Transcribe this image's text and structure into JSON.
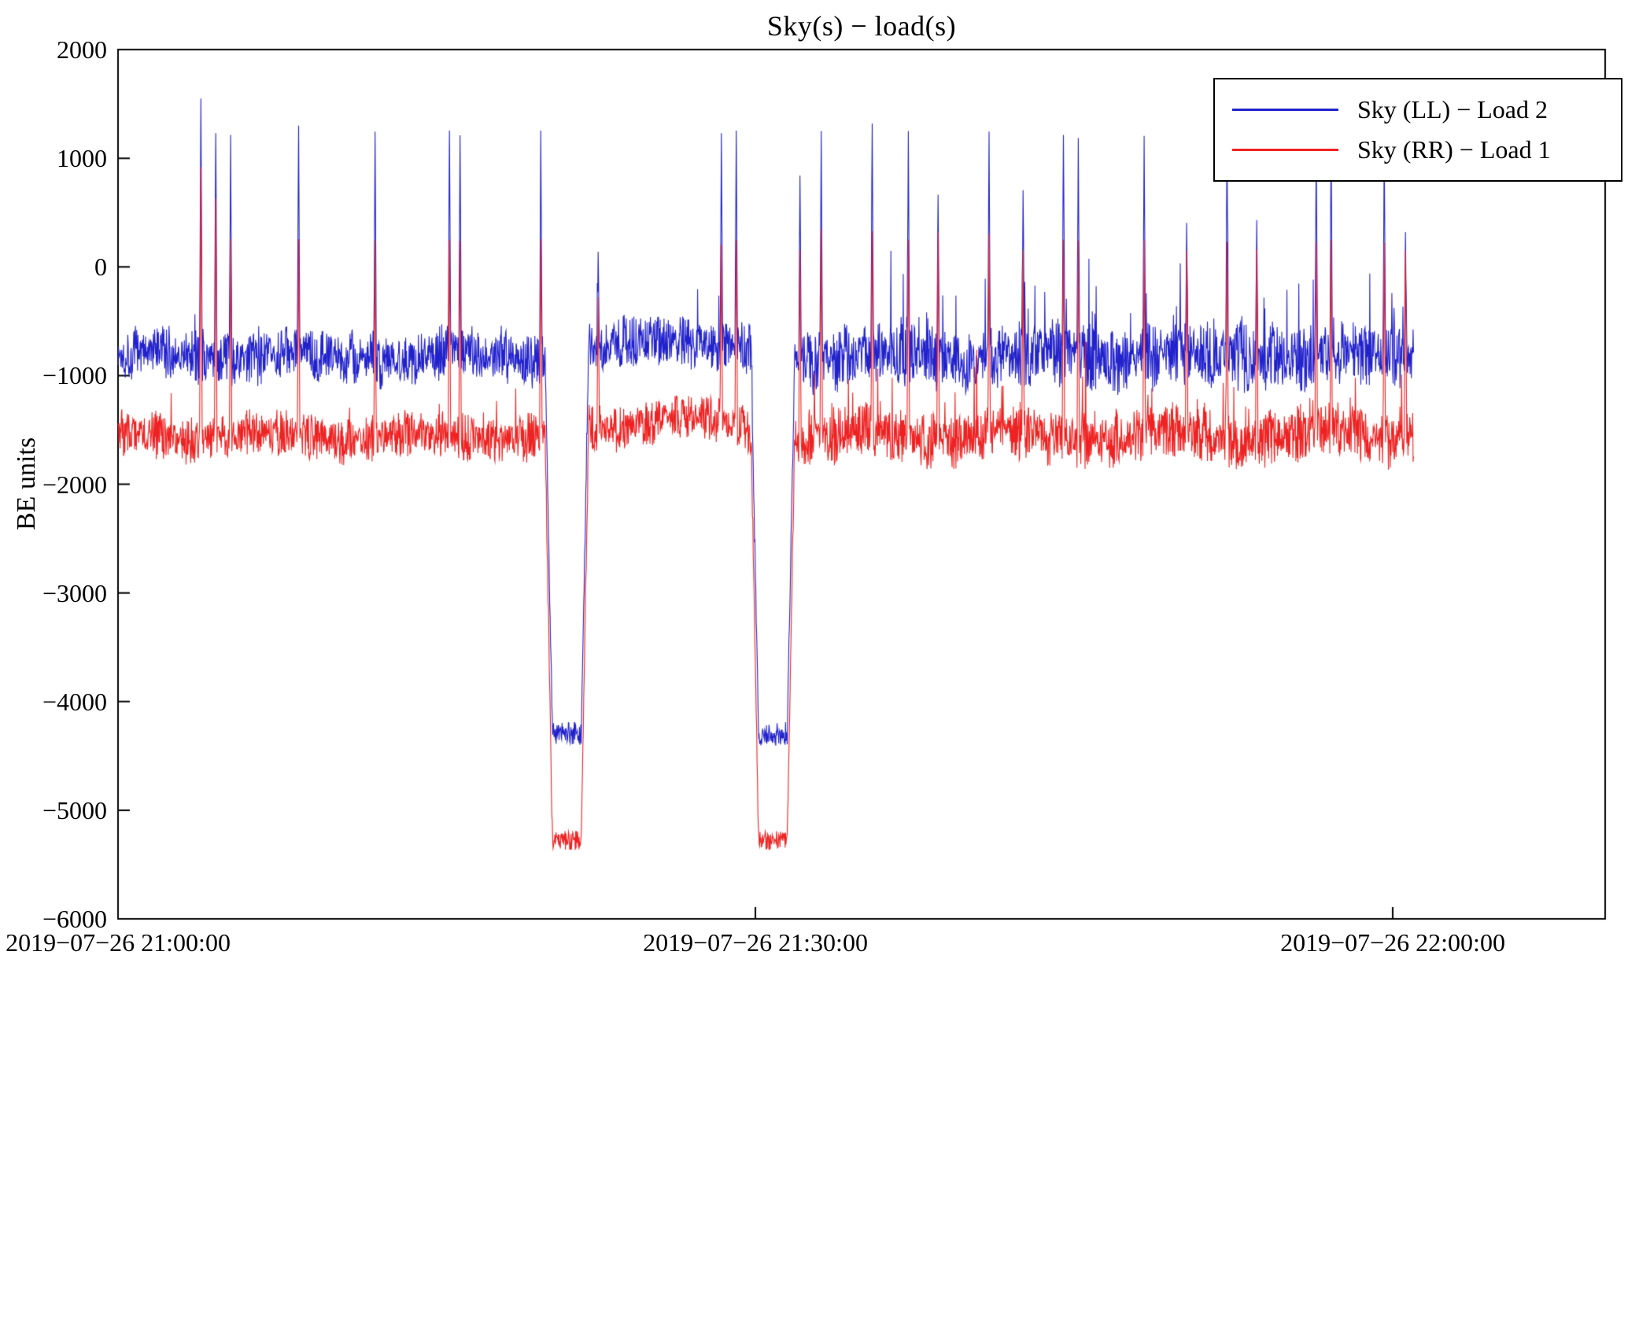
{
  "chart_data": {
    "type": "line",
    "title": "Sky(s) − load(s)",
    "ylabel": "BE units",
    "xlabel": "",
    "ylim": [
      -6000,
      2000
    ],
    "xlim_minutes": [
      0,
      70
    ],
    "grid": false,
    "legend_position": "upper right",
    "yticks": [
      2000,
      1000,
      0,
      -1000,
      -2000,
      -3000,
      -4000,
      -5000,
      -6000
    ],
    "ytick_labels": [
      "2000",
      "1000",
      "0",
      "−1000",
      "−2000",
      "−3000",
      "−4000",
      "−5000",
      "−6000"
    ],
    "xticks_minutes": [
      0,
      30,
      60
    ],
    "xtick_labels": [
      "2019−07−26 21:00:00",
      "2019−07−26 21:30:00",
      "2019−07−26 22:00:00"
    ],
    "legend": [
      {
        "label": "Sky (LL) − Load 2",
        "color": "#2222cc"
      },
      {
        "label": "Sky (RR) − Load 1",
        "color": "#ee2222"
      }
    ],
    "data_end_minutes": 61,
    "sample_per_minute": 50,
    "late_start_min": 32.5,
    "hump_center_min": 26.0,
    "hump_sigma_min": 2.0,
    "series": [
      {
        "name": "Sky (LL) − Load 2",
        "color": "#2222cc",
        "baseline": -820,
        "noise_half_amp": 270,
        "noise_half_amp_late": 330,
        "burst_amp": 520,
        "burst_amp_late": 950,
        "burst_p": 0.035,
        "burst_p_late": 0.085,
        "hump_amp": 180,
        "dip_level": -4300,
        "dip_noise": 110,
        "seed": 1337
      },
      {
        "name": "Sky (RR) − Load 1",
        "color": "#ee2222",
        "baseline": -1560,
        "noise_half_amp": 230,
        "noise_half_amp_late": 280,
        "burst_amp": 420,
        "burst_amp_late": 780,
        "burst_p": 0.035,
        "burst_p_late": 0.085,
        "hump_amp": 200,
        "dip_level": -5280,
        "dip_noise": 90,
        "seed": 777
      }
    ],
    "dips": [
      {
        "start_min": 20.1,
        "end_min": 22.15,
        "ramp_min": 0.35
      },
      {
        "start_min": 29.8,
        "end_min": 31.85,
        "ramp_min": 0.35
      }
    ],
    "spikes": [
      {
        "t_min": 3.9,
        "values": [
          1550,
          920
        ]
      },
      {
        "t_min": 4.6,
        "values": [
          1230,
          630
        ]
      },
      {
        "t_min": 5.3,
        "values": [
          1215,
          260
        ]
      },
      {
        "t_min": 8.5,
        "values": [
          1300,
          255
        ]
      },
      {
        "t_min": 12.1,
        "values": [
          1245,
          245
        ]
      },
      {
        "t_min": 15.6,
        "values": [
          1255,
          250
        ]
      },
      {
        "t_min": 16.1,
        "values": [
          1210,
          240
        ]
      },
      {
        "t_min": 19.9,
        "values": [
          1255,
          255
        ]
      },
      {
        "t_min": 22.6,
        "values": [
          140,
          -280
        ]
      },
      {
        "t_min": 28.4,
        "values": [
          1230,
          205
        ]
      },
      {
        "t_min": 29.1,
        "values": [
          1255,
          250
        ]
      },
      {
        "t_min": 32.1,
        "values": [
          840,
          150
        ]
      },
      {
        "t_min": 33.1,
        "values": [
          1250,
          350
        ]
      },
      {
        "t_min": 35.5,
        "values": [
          1320,
          330
        ]
      },
      {
        "t_min": 37.2,
        "values": [
          1250,
          250
        ]
      },
      {
        "t_min": 38.6,
        "values": [
          665,
          320
        ]
      },
      {
        "t_min": 41.0,
        "values": [
          1245,
          300
        ]
      },
      {
        "t_min": 42.6,
        "values": [
          705,
          150
        ]
      },
      {
        "t_min": 44.5,
        "values": [
          1215,
          250
        ]
      },
      {
        "t_min": 45.2,
        "values": [
          1185,
          245
        ]
      },
      {
        "t_min": 48.3,
        "values": [
          1205,
          250
        ]
      },
      {
        "t_min": 50.3,
        "values": [
          405,
          150
        ]
      },
      {
        "t_min": 52.2,
        "values": [
          1180,
          230
        ]
      },
      {
        "t_min": 53.6,
        "values": [
          430,
          160
        ]
      },
      {
        "t_min": 56.4,
        "values": [
          1135,
          225
        ]
      },
      {
        "t_min": 57.1,
        "values": [
          1140,
          250
        ]
      },
      {
        "t_min": 59.6,
        "values": [
          1130,
          220
        ]
      },
      {
        "t_min": 60.6,
        "values": [
          320,
          150
        ]
      }
    ]
  }
}
